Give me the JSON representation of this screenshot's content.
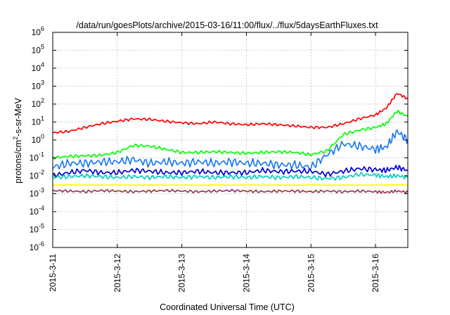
{
  "chart_data": {
    "type": "line",
    "title": "/data/run/goesPlots/archive/2015-03-16/11:00/flux/../flux/5daysEarthFluxes.txt",
    "xlabel": "Coordinated Universal Time (UTC)",
    "ylabel": "protons/cm2-s-sr-MeV",
    "ylabel_parts": {
      "pre": "protons/cm",
      "sup": "2",
      "post": "-s-sr-MeV"
    },
    "y_scale": "log",
    "ylim": [
      1e-06,
      1000000.0
    ],
    "y_ticks": [
      {
        "value": 1e-06,
        "base": "10",
        "exp": "-6"
      },
      {
        "value": 1e-05,
        "base": "10",
        "exp": "-5"
      },
      {
        "value": 0.0001,
        "base": "10",
        "exp": "-4"
      },
      {
        "value": 0.001,
        "base": "10",
        "exp": "-3"
      },
      {
        "value": 0.01,
        "base": "10",
        "exp": "-2"
      },
      {
        "value": 0.1,
        "base": "10",
        "exp": "-1"
      },
      {
        "value": 1,
        "base": "10",
        "exp": "0"
      },
      {
        "value": 10,
        "base": "10",
        "exp": "1"
      },
      {
        "value": 100,
        "base": "10",
        "exp": "2"
      },
      {
        "value": 1000,
        "base": "10",
        "exp": "3"
      },
      {
        "value": 10000,
        "base": "10",
        "exp": "4"
      },
      {
        "value": 100000,
        "base": "10",
        "exp": "5"
      },
      {
        "value": 1000000,
        "base": "10",
        "exp": "6"
      }
    ],
    "xlim": [
      "2015-03-11T00:00",
      "2015-03-16T12:00"
    ],
    "x_ticks": [
      "2015-3-11",
      "2015-3-12",
      "2015-3-13",
      "2015-3-14",
      "2015-3-15",
      "2015-3-16"
    ],
    "x_tick_dates": [
      "2015-03-11T00:00",
      "2015-03-12T00:00",
      "2015-03-13T00:00",
      "2015-03-14T00:00",
      "2015-03-15T00:00",
      "2015-03-16T00:00"
    ],
    "grid": true,
    "legend": "none",
    "x": [
      "2015-03-11T00:00",
      "2015-03-11T06:00",
      "2015-03-11T12:00",
      "2015-03-11T18:00",
      "2015-03-12T00:00",
      "2015-03-12T06:00",
      "2015-03-12T12:00",
      "2015-03-12T18:00",
      "2015-03-13T00:00",
      "2015-03-13T06:00",
      "2015-03-13T12:00",
      "2015-03-13T18:00",
      "2015-03-14T00:00",
      "2015-03-14T06:00",
      "2015-03-14T12:00",
      "2015-03-14T18:00",
      "2015-03-15T00:00",
      "2015-03-15T06:00",
      "2015-03-15T12:00",
      "2015-03-15T18:00",
      "2015-03-16T00:00",
      "2015-03-16T04:00",
      "2015-03-16T08:00",
      "2015-03-16T12:00"
    ],
    "series": [
      {
        "color": "#ff0000",
        "values": [
          2.5,
          3,
          5,
          8,
          11,
          15,
          14,
          11,
          9,
          8,
          10,
          8,
          7,
          8,
          7,
          6,
          5,
          5,
          8,
          15,
          25,
          60,
          400,
          200
        ]
      },
      {
        "color": "#00ff00",
        "values": [
          0.1,
          0.12,
          0.13,
          0.14,
          0.2,
          0.5,
          0.45,
          0.3,
          0.2,
          0.2,
          0.22,
          0.2,
          0.18,
          0.2,
          0.22,
          0.2,
          0.15,
          0.25,
          2,
          3.5,
          5,
          8,
          40,
          20
        ]
      },
      {
        "color": "#1e7bf0",
        "values": [
          0.03,
          0.05,
          0.05,
          0.06,
          0.06,
          0.08,
          0.05,
          0.06,
          0.05,
          0.06,
          0.05,
          0.06,
          0.05,
          0.05,
          0.04,
          0.04,
          0.03,
          0.15,
          0.6,
          0.45,
          0.3,
          0.4,
          3,
          1
        ]
      },
      {
        "color": "#0000d0",
        "values": [
          0.01,
          0.015,
          0.02,
          0.015,
          0.015,
          0.02,
          0.018,
          0.015,
          0.015,
          0.018,
          0.015,
          0.015,
          0.015,
          0.02,
          0.017,
          0.018,
          0.018,
          0.012,
          0.018,
          0.025,
          0.022,
          0.02,
          0.03,
          0.02
        ]
      },
      {
        "color": "#00d0c0",
        "values": [
          0.008,
          0.009,
          0.01,
          0.009,
          0.008,
          0.009,
          0.008,
          0.009,
          0.008,
          0.009,
          0.008,
          0.009,
          0.008,
          0.009,
          0.008,
          0.009,
          0.008,
          0.007,
          0.008,
          0.012,
          0.011,
          0.009,
          0.01,
          0.008
        ]
      },
      {
        "color": "#ffff00",
        "values": [
          0.003,
          0.0031,
          0.0031,
          0.003,
          0.0031,
          0.003,
          0.0031,
          0.003,
          0.0031,
          0.003,
          0.0031,
          0.003,
          0.0031,
          0.003,
          0.0031,
          0.003,
          0.0031,
          0.003,
          0.0031,
          0.003,
          0.0031,
          0.003,
          0.0032,
          0.003
        ]
      },
      {
        "color": "#993366",
        "values": [
          0.0015,
          0.0014,
          0.0013,
          0.0015,
          0.0014,
          0.0013,
          0.0014,
          0.0015,
          0.0014,
          0.0013,
          0.0014,
          0.0015,
          0.0014,
          0.0013,
          0.0014,
          0.0014,
          0.0013,
          0.0014,
          0.0013,
          0.0014,
          0.0013,
          0.0012,
          0.0014,
          0.0012
        ]
      }
    ]
  }
}
